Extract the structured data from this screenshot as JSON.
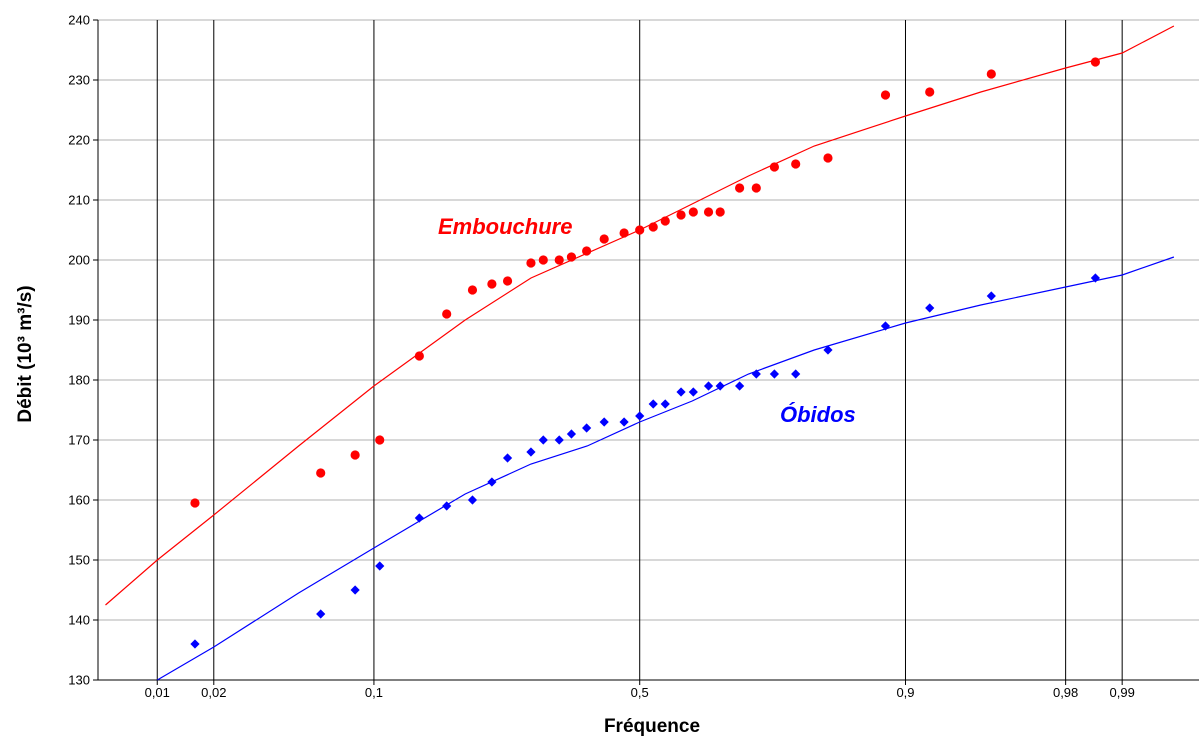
{
  "chart_data": {
    "type": "scatter",
    "xlabel": "Fréquence",
    "ylabel": "Débit (10³ m³/s)",
    "x_scale": "normal-probability",
    "xlim": [
      0.0045,
      0.9965
    ],
    "ylim": [
      130,
      240
    ],
    "x_ticks": [
      {
        "value": 0.01,
        "label": "0,01"
      },
      {
        "value": 0.02,
        "label": "0,02"
      },
      {
        "value": 0.1,
        "label": "0,1"
      },
      {
        "value": 0.5,
        "label": "0,5"
      },
      {
        "value": 0.9,
        "label": "0,9"
      },
      {
        "value": 0.98,
        "label": "0,98"
      },
      {
        "value": 0.99,
        "label": "0,99"
      }
    ],
    "y_ticks": [
      130,
      140,
      150,
      160,
      170,
      180,
      190,
      200,
      210,
      220,
      230,
      240
    ],
    "grid": {
      "horizontal": true,
      "vertical": true
    },
    "series": [
      {
        "name": "Embouchure",
        "color": "#ff0000",
        "marker": "circle",
        "points": [
          [
            0.016,
            159.5
          ],
          [
            0.062,
            164.5
          ],
          [
            0.085,
            167.5
          ],
          [
            0.105,
            170
          ],
          [
            0.144,
            184
          ],
          [
            0.176,
            191
          ],
          [
            0.21,
            195
          ],
          [
            0.238,
            196
          ],
          [
            0.262,
            196.5
          ],
          [
            0.3,
            199.5
          ],
          [
            0.321,
            200
          ],
          [
            0.349,
            200
          ],
          [
            0.371,
            200.5
          ],
          [
            0.399,
            201.5
          ],
          [
            0.432,
            203.5
          ],
          [
            0.47,
            204.5
          ],
          [
            0.5,
            205
          ],
          [
            0.526,
            205.5
          ],
          [
            0.549,
            206.5
          ],
          [
            0.579,
            207.5
          ],
          [
            0.602,
            208
          ],
          [
            0.63,
            208
          ],
          [
            0.651,
            208
          ],
          [
            0.685,
            212
          ],
          [
            0.713,
            212
          ],
          [
            0.742,
            215.5
          ],
          [
            0.774,
            216
          ],
          [
            0.818,
            217
          ],
          [
            0.882,
            227.5
          ],
          [
            0.919,
            228
          ],
          [
            0.955,
            231
          ],
          [
            0.986,
            233
          ]
        ],
        "fit_line": [
          [
            0.005,
            142.5
          ],
          [
            0.01,
            150
          ],
          [
            0.02,
            157.5
          ],
          [
            0.05,
            169
          ],
          [
            0.1,
            179
          ],
          [
            0.2,
            190
          ],
          [
            0.3,
            197
          ],
          [
            0.5,
            205
          ],
          [
            0.7,
            214
          ],
          [
            0.8,
            219
          ],
          [
            0.9,
            224
          ],
          [
            0.95,
            228
          ],
          [
            0.98,
            232
          ],
          [
            0.99,
            234.5
          ],
          [
            0.995,
            239
          ]
        ]
      },
      {
        "name": "Óbidos",
        "color": "#0000ff",
        "marker": "diamond",
        "points": [
          [
            0.016,
            136
          ],
          [
            0.062,
            141
          ],
          [
            0.085,
            145
          ],
          [
            0.105,
            149
          ],
          [
            0.144,
            157
          ],
          [
            0.176,
            159
          ],
          [
            0.21,
            160
          ],
          [
            0.238,
            163
          ],
          [
            0.262,
            167
          ],
          [
            0.3,
            168
          ],
          [
            0.321,
            170
          ],
          [
            0.349,
            170
          ],
          [
            0.371,
            171
          ],
          [
            0.399,
            172
          ],
          [
            0.432,
            173
          ],
          [
            0.47,
            173
          ],
          [
            0.5,
            174
          ],
          [
            0.526,
            176
          ],
          [
            0.549,
            176
          ],
          [
            0.579,
            178
          ],
          [
            0.602,
            178
          ],
          [
            0.63,
            179
          ],
          [
            0.651,
            179
          ],
          [
            0.685,
            179
          ],
          [
            0.713,
            181
          ],
          [
            0.742,
            181
          ],
          [
            0.774,
            181
          ],
          [
            0.818,
            185
          ],
          [
            0.882,
            189
          ],
          [
            0.919,
            192
          ],
          [
            0.955,
            194
          ],
          [
            0.986,
            197
          ]
        ],
        "fit_line": [
          [
            0.01,
            130
          ],
          [
            0.02,
            135.5
          ],
          [
            0.05,
            144.5
          ],
          [
            0.1,
            152
          ],
          [
            0.2,
            161
          ],
          [
            0.3,
            166
          ],
          [
            0.4,
            169
          ],
          [
            0.5,
            173
          ],
          [
            0.6,
            176.5
          ],
          [
            0.7,
            181
          ],
          [
            0.8,
            185
          ],
          [
            0.9,
            189.5
          ],
          [
            0.95,
            192.5
          ],
          [
            0.98,
            195.5
          ],
          [
            0.99,
            197.5
          ],
          [
            0.995,
            200.5
          ]
        ]
      }
    ]
  }
}
